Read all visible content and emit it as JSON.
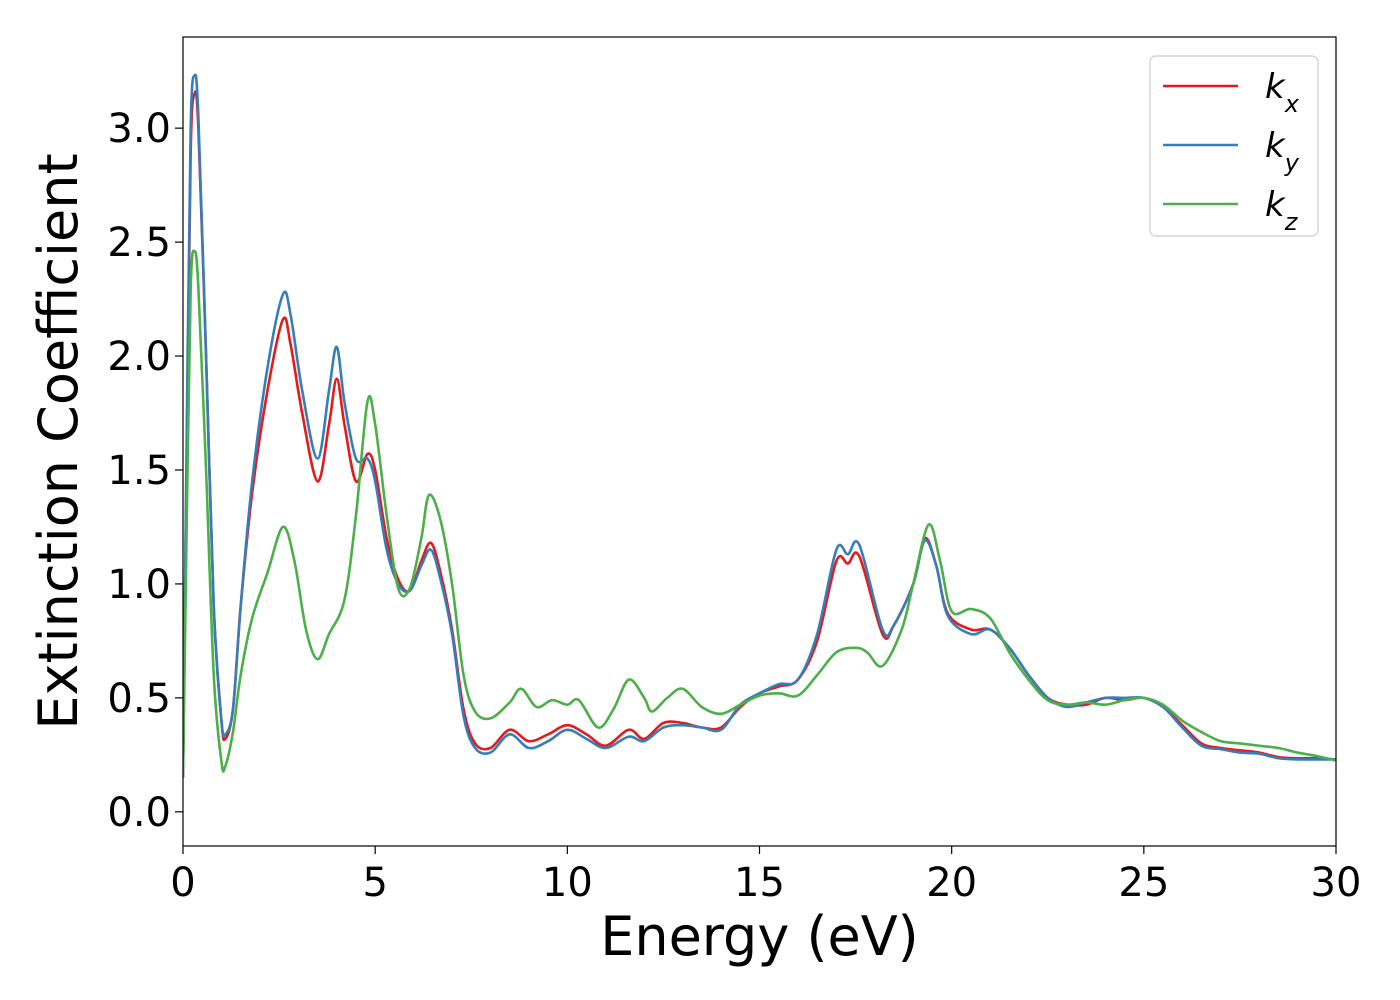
{
  "chart_data": {
    "type": "line",
    "xlabel": "Energy (eV)",
    "ylabel": "Extinction Coefficient",
    "xlim": [
      0,
      30
    ],
    "ylim": [
      -0.15,
      3.4
    ],
    "xticks": [
      0,
      5,
      10,
      15,
      20,
      25,
      30
    ],
    "xtick_labels": [
      "0",
      "5",
      "10",
      "15",
      "20",
      "25",
      "30"
    ],
    "yticks": [
      0.0,
      0.5,
      1.0,
      1.5,
      2.0,
      2.5,
      3.0
    ],
    "ytick_labels": [
      "0.0",
      "0.5",
      "1.0",
      "1.5",
      "2.0",
      "2.5",
      "3.0"
    ],
    "grid": false,
    "legend_position": "top-right",
    "series": [
      {
        "name": "k",
        "subscript": "x",
        "color": "#e41a1c",
        "points": [
          [
            0.0,
            0.15
          ],
          [
            0.1,
            1.6
          ],
          [
            0.2,
            2.9
          ],
          [
            0.3,
            3.15
          ],
          [
            0.4,
            3.0
          ],
          [
            0.6,
            2.0
          ],
          [
            0.8,
            0.9
          ],
          [
            1.0,
            0.4
          ],
          [
            1.1,
            0.32
          ],
          [
            1.3,
            0.45
          ],
          [
            1.5,
            0.9
          ],
          [
            1.8,
            1.4
          ],
          [
            2.2,
            1.85
          ],
          [
            2.6,
            2.16
          ],
          [
            2.8,
            2.05
          ],
          [
            3.1,
            1.75
          ],
          [
            3.5,
            1.45
          ],
          [
            3.8,
            1.7
          ],
          [
            4.0,
            1.9
          ],
          [
            4.2,
            1.7
          ],
          [
            4.5,
            1.45
          ],
          [
            4.8,
            1.57
          ],
          [
            5.0,
            1.5
          ],
          [
            5.3,
            1.2
          ],
          [
            5.6,
            1.02
          ],
          [
            5.9,
            0.97
          ],
          [
            6.2,
            1.1
          ],
          [
            6.45,
            1.18
          ],
          [
            6.7,
            1.05
          ],
          [
            7.0,
            0.8
          ],
          [
            7.3,
            0.45
          ],
          [
            7.6,
            0.3
          ],
          [
            8.0,
            0.28
          ],
          [
            8.5,
            0.36
          ],
          [
            9.0,
            0.31
          ],
          [
            9.5,
            0.34
          ],
          [
            10.0,
            0.38
          ],
          [
            10.5,
            0.34
          ],
          [
            11.0,
            0.29
          ],
          [
            11.6,
            0.36
          ],
          [
            12.0,
            0.32
          ],
          [
            12.5,
            0.39
          ],
          [
            13.0,
            0.39
          ],
          [
            13.5,
            0.37
          ],
          [
            14.0,
            0.37
          ],
          [
            14.5,
            0.46
          ],
          [
            15.0,
            0.52
          ],
          [
            15.5,
            0.55
          ],
          [
            16.0,
            0.58
          ],
          [
            16.5,
            0.75
          ],
          [
            17.0,
            1.1
          ],
          [
            17.3,
            1.09
          ],
          [
            17.6,
            1.12
          ],
          [
            18.2,
            0.78
          ],
          [
            18.5,
            0.82
          ],
          [
            19.0,
            1.0
          ],
          [
            19.3,
            1.2
          ],
          [
            19.6,
            1.08
          ],
          [
            19.9,
            0.87
          ],
          [
            20.5,
            0.8
          ],
          [
            21.0,
            0.8
          ],
          [
            21.5,
            0.72
          ],
          [
            22.0,
            0.6
          ],
          [
            22.5,
            0.5
          ],
          [
            23.0,
            0.47
          ],
          [
            23.5,
            0.47
          ],
          [
            24.0,
            0.5
          ],
          [
            24.5,
            0.49
          ],
          [
            25.0,
            0.5
          ],
          [
            25.5,
            0.46
          ],
          [
            26.0,
            0.38
          ],
          [
            26.5,
            0.3
          ],
          [
            27.0,
            0.28
          ],
          [
            27.5,
            0.27
          ],
          [
            28.0,
            0.26
          ],
          [
            28.5,
            0.24
          ],
          [
            29.0,
            0.235
          ],
          [
            29.5,
            0.235
          ],
          [
            30.0,
            0.23
          ]
        ]
      },
      {
        "name": "k",
        "subscript": "y",
        "color": "#377eb8",
        "points": [
          [
            0.0,
            0.15
          ],
          [
            0.1,
            1.7
          ],
          [
            0.2,
            3.0
          ],
          [
            0.3,
            3.23
          ],
          [
            0.4,
            3.05
          ],
          [
            0.6,
            2.0
          ],
          [
            0.8,
            0.9
          ],
          [
            1.0,
            0.4
          ],
          [
            1.1,
            0.34
          ],
          [
            1.3,
            0.45
          ],
          [
            1.5,
            0.9
          ],
          [
            1.8,
            1.45
          ],
          [
            2.2,
            1.95
          ],
          [
            2.6,
            2.27
          ],
          [
            2.8,
            2.18
          ],
          [
            3.1,
            1.85
          ],
          [
            3.5,
            1.55
          ],
          [
            3.8,
            1.85
          ],
          [
            4.0,
            2.04
          ],
          [
            4.2,
            1.8
          ],
          [
            4.5,
            1.55
          ],
          [
            4.8,
            1.55
          ],
          [
            5.0,
            1.45
          ],
          [
            5.3,
            1.15
          ],
          [
            5.6,
            1.0
          ],
          [
            5.9,
            0.97
          ],
          [
            6.2,
            1.08
          ],
          [
            6.45,
            1.15
          ],
          [
            6.7,
            1.02
          ],
          [
            7.0,
            0.78
          ],
          [
            7.3,
            0.42
          ],
          [
            7.6,
            0.28
          ],
          [
            8.0,
            0.26
          ],
          [
            8.5,
            0.34
          ],
          [
            9.0,
            0.28
          ],
          [
            9.5,
            0.31
          ],
          [
            10.0,
            0.36
          ],
          [
            10.5,
            0.32
          ],
          [
            11.0,
            0.28
          ],
          [
            11.6,
            0.33
          ],
          [
            12.0,
            0.31
          ],
          [
            12.5,
            0.37
          ],
          [
            13.0,
            0.38
          ],
          [
            13.5,
            0.37
          ],
          [
            14.0,
            0.36
          ],
          [
            14.5,
            0.47
          ],
          [
            15.0,
            0.52
          ],
          [
            15.5,
            0.56
          ],
          [
            16.0,
            0.58
          ],
          [
            16.5,
            0.78
          ],
          [
            17.0,
            1.15
          ],
          [
            17.3,
            1.13
          ],
          [
            17.6,
            1.17
          ],
          [
            18.2,
            0.8
          ],
          [
            18.5,
            0.82
          ],
          [
            19.0,
            1.0
          ],
          [
            19.3,
            1.19
          ],
          [
            19.6,
            1.08
          ],
          [
            19.9,
            0.86
          ],
          [
            20.5,
            0.78
          ],
          [
            21.0,
            0.8
          ],
          [
            21.5,
            0.72
          ],
          [
            22.0,
            0.6
          ],
          [
            22.5,
            0.5
          ],
          [
            23.0,
            0.46
          ],
          [
            23.5,
            0.48
          ],
          [
            24.0,
            0.5
          ],
          [
            24.5,
            0.5
          ],
          [
            25.0,
            0.5
          ],
          [
            25.5,
            0.46
          ],
          [
            26.0,
            0.37
          ],
          [
            26.5,
            0.29
          ],
          [
            27.0,
            0.275
          ],
          [
            27.5,
            0.26
          ],
          [
            28.0,
            0.255
          ],
          [
            28.5,
            0.235
          ],
          [
            29.0,
            0.23
          ],
          [
            29.5,
            0.23
          ],
          [
            30.0,
            0.23
          ]
        ]
      },
      {
        "name": "k",
        "subscript": "z",
        "color": "#4daf4a",
        "points": [
          [
            0.0,
            0.15
          ],
          [
            0.1,
            1.3
          ],
          [
            0.2,
            2.3
          ],
          [
            0.3,
            2.46
          ],
          [
            0.4,
            2.3
          ],
          [
            0.6,
            1.5
          ],
          [
            0.8,
            0.6
          ],
          [
            1.0,
            0.22
          ],
          [
            1.1,
            0.2
          ],
          [
            1.3,
            0.35
          ],
          [
            1.5,
            0.6
          ],
          [
            1.8,
            0.85
          ],
          [
            2.2,
            1.05
          ],
          [
            2.6,
            1.25
          ],
          [
            2.9,
            1.1
          ],
          [
            3.2,
            0.8
          ],
          [
            3.5,
            0.67
          ],
          [
            3.8,
            0.78
          ],
          [
            4.2,
            0.93
          ],
          [
            4.5,
            1.3
          ],
          [
            4.8,
            1.8
          ],
          [
            5.0,
            1.7
          ],
          [
            5.3,
            1.3
          ],
          [
            5.6,
            0.98
          ],
          [
            5.9,
            0.98
          ],
          [
            6.2,
            1.2
          ],
          [
            6.4,
            1.39
          ],
          [
            6.7,
            1.28
          ],
          [
            7.0,
            1.0
          ],
          [
            7.3,
            0.6
          ],
          [
            7.6,
            0.44
          ],
          [
            8.0,
            0.41
          ],
          [
            8.5,
            0.48
          ],
          [
            8.8,
            0.54
          ],
          [
            9.2,
            0.46
          ],
          [
            9.6,
            0.49
          ],
          [
            10.0,
            0.47
          ],
          [
            10.3,
            0.49
          ],
          [
            10.8,
            0.37
          ],
          [
            11.2,
            0.45
          ],
          [
            11.6,
            0.58
          ],
          [
            12.0,
            0.5
          ],
          [
            12.2,
            0.44
          ],
          [
            12.6,
            0.5
          ],
          [
            13.0,
            0.54
          ],
          [
            13.5,
            0.46
          ],
          [
            14.0,
            0.43
          ],
          [
            14.5,
            0.47
          ],
          [
            15.0,
            0.51
          ],
          [
            15.5,
            0.52
          ],
          [
            16.0,
            0.51
          ],
          [
            16.5,
            0.6
          ],
          [
            17.0,
            0.7
          ],
          [
            17.5,
            0.72
          ],
          [
            17.8,
            0.7
          ],
          [
            18.2,
            0.64
          ],
          [
            18.7,
            0.8
          ],
          [
            19.0,
            1.0
          ],
          [
            19.4,
            1.26
          ],
          [
            19.7,
            1.1
          ],
          [
            20.0,
            0.88
          ],
          [
            20.5,
            0.89
          ],
          [
            21.0,
            0.85
          ],
          [
            21.5,
            0.7
          ],
          [
            22.0,
            0.58
          ],
          [
            22.5,
            0.49
          ],
          [
            23.0,
            0.47
          ],
          [
            23.5,
            0.48
          ],
          [
            24.0,
            0.47
          ],
          [
            24.5,
            0.49
          ],
          [
            25.0,
            0.5
          ],
          [
            25.5,
            0.47
          ],
          [
            26.0,
            0.4
          ],
          [
            26.5,
            0.35
          ],
          [
            27.0,
            0.31
          ],
          [
            27.5,
            0.3
          ],
          [
            28.0,
            0.29
          ],
          [
            28.5,
            0.28
          ],
          [
            29.0,
            0.26
          ],
          [
            29.5,
            0.245
          ],
          [
            30.0,
            0.225
          ]
        ]
      }
    ]
  }
}
